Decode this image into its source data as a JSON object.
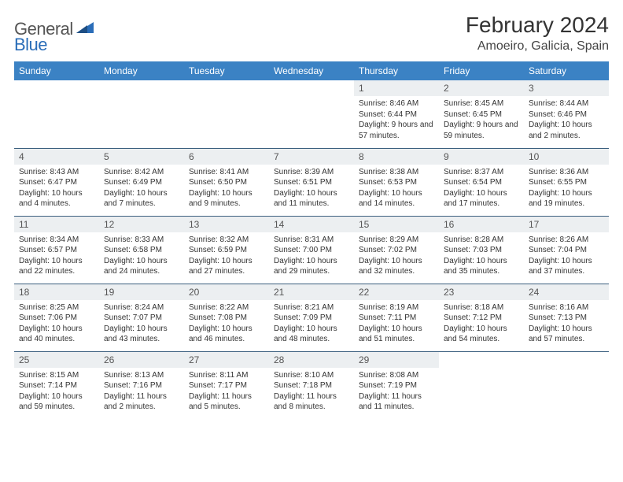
{
  "logo": {
    "text1": "General",
    "text2": "Blue"
  },
  "title": "February 2024",
  "location": "Amoeiro, Galicia, Spain",
  "header_bg": "#3b82c4",
  "header_text_color": "#ffffff",
  "daynum_bg": "#eceff1",
  "cell_border_color": "#3b5f7f",
  "day_headers": [
    "Sunday",
    "Monday",
    "Tuesday",
    "Wednesday",
    "Thursday",
    "Friday",
    "Saturday"
  ],
  "weeks": [
    [
      null,
      null,
      null,
      null,
      {
        "n": "1",
        "sr": "Sunrise: 8:46 AM",
        "ss": "Sunset: 6:44 PM",
        "dl": "Daylight: 9 hours and 57 minutes."
      },
      {
        "n": "2",
        "sr": "Sunrise: 8:45 AM",
        "ss": "Sunset: 6:45 PM",
        "dl": "Daylight: 9 hours and 59 minutes."
      },
      {
        "n": "3",
        "sr": "Sunrise: 8:44 AM",
        "ss": "Sunset: 6:46 PM",
        "dl": "Daylight: 10 hours and 2 minutes."
      }
    ],
    [
      {
        "n": "4",
        "sr": "Sunrise: 8:43 AM",
        "ss": "Sunset: 6:47 PM",
        "dl": "Daylight: 10 hours and 4 minutes."
      },
      {
        "n": "5",
        "sr": "Sunrise: 8:42 AM",
        "ss": "Sunset: 6:49 PM",
        "dl": "Daylight: 10 hours and 7 minutes."
      },
      {
        "n": "6",
        "sr": "Sunrise: 8:41 AM",
        "ss": "Sunset: 6:50 PM",
        "dl": "Daylight: 10 hours and 9 minutes."
      },
      {
        "n": "7",
        "sr": "Sunrise: 8:39 AM",
        "ss": "Sunset: 6:51 PM",
        "dl": "Daylight: 10 hours and 11 minutes."
      },
      {
        "n": "8",
        "sr": "Sunrise: 8:38 AM",
        "ss": "Sunset: 6:53 PM",
        "dl": "Daylight: 10 hours and 14 minutes."
      },
      {
        "n": "9",
        "sr": "Sunrise: 8:37 AM",
        "ss": "Sunset: 6:54 PM",
        "dl": "Daylight: 10 hours and 17 minutes."
      },
      {
        "n": "10",
        "sr": "Sunrise: 8:36 AM",
        "ss": "Sunset: 6:55 PM",
        "dl": "Daylight: 10 hours and 19 minutes."
      }
    ],
    [
      {
        "n": "11",
        "sr": "Sunrise: 8:34 AM",
        "ss": "Sunset: 6:57 PM",
        "dl": "Daylight: 10 hours and 22 minutes."
      },
      {
        "n": "12",
        "sr": "Sunrise: 8:33 AM",
        "ss": "Sunset: 6:58 PM",
        "dl": "Daylight: 10 hours and 24 minutes."
      },
      {
        "n": "13",
        "sr": "Sunrise: 8:32 AM",
        "ss": "Sunset: 6:59 PM",
        "dl": "Daylight: 10 hours and 27 minutes."
      },
      {
        "n": "14",
        "sr": "Sunrise: 8:31 AM",
        "ss": "Sunset: 7:00 PM",
        "dl": "Daylight: 10 hours and 29 minutes."
      },
      {
        "n": "15",
        "sr": "Sunrise: 8:29 AM",
        "ss": "Sunset: 7:02 PM",
        "dl": "Daylight: 10 hours and 32 minutes."
      },
      {
        "n": "16",
        "sr": "Sunrise: 8:28 AM",
        "ss": "Sunset: 7:03 PM",
        "dl": "Daylight: 10 hours and 35 minutes."
      },
      {
        "n": "17",
        "sr": "Sunrise: 8:26 AM",
        "ss": "Sunset: 7:04 PM",
        "dl": "Daylight: 10 hours and 37 minutes."
      }
    ],
    [
      {
        "n": "18",
        "sr": "Sunrise: 8:25 AM",
        "ss": "Sunset: 7:06 PM",
        "dl": "Daylight: 10 hours and 40 minutes."
      },
      {
        "n": "19",
        "sr": "Sunrise: 8:24 AM",
        "ss": "Sunset: 7:07 PM",
        "dl": "Daylight: 10 hours and 43 minutes."
      },
      {
        "n": "20",
        "sr": "Sunrise: 8:22 AM",
        "ss": "Sunset: 7:08 PM",
        "dl": "Daylight: 10 hours and 46 minutes."
      },
      {
        "n": "21",
        "sr": "Sunrise: 8:21 AM",
        "ss": "Sunset: 7:09 PM",
        "dl": "Daylight: 10 hours and 48 minutes."
      },
      {
        "n": "22",
        "sr": "Sunrise: 8:19 AM",
        "ss": "Sunset: 7:11 PM",
        "dl": "Daylight: 10 hours and 51 minutes."
      },
      {
        "n": "23",
        "sr": "Sunrise: 8:18 AM",
        "ss": "Sunset: 7:12 PM",
        "dl": "Daylight: 10 hours and 54 minutes."
      },
      {
        "n": "24",
        "sr": "Sunrise: 8:16 AM",
        "ss": "Sunset: 7:13 PM",
        "dl": "Daylight: 10 hours and 57 minutes."
      }
    ],
    [
      {
        "n": "25",
        "sr": "Sunrise: 8:15 AM",
        "ss": "Sunset: 7:14 PM",
        "dl": "Daylight: 10 hours and 59 minutes."
      },
      {
        "n": "26",
        "sr": "Sunrise: 8:13 AM",
        "ss": "Sunset: 7:16 PM",
        "dl": "Daylight: 11 hours and 2 minutes."
      },
      {
        "n": "27",
        "sr": "Sunrise: 8:11 AM",
        "ss": "Sunset: 7:17 PM",
        "dl": "Daylight: 11 hours and 5 minutes."
      },
      {
        "n": "28",
        "sr": "Sunrise: 8:10 AM",
        "ss": "Sunset: 7:18 PM",
        "dl": "Daylight: 11 hours and 8 minutes."
      },
      {
        "n": "29",
        "sr": "Sunrise: 8:08 AM",
        "ss": "Sunset: 7:19 PM",
        "dl": "Daylight: 11 hours and 11 minutes."
      },
      null,
      null
    ]
  ]
}
